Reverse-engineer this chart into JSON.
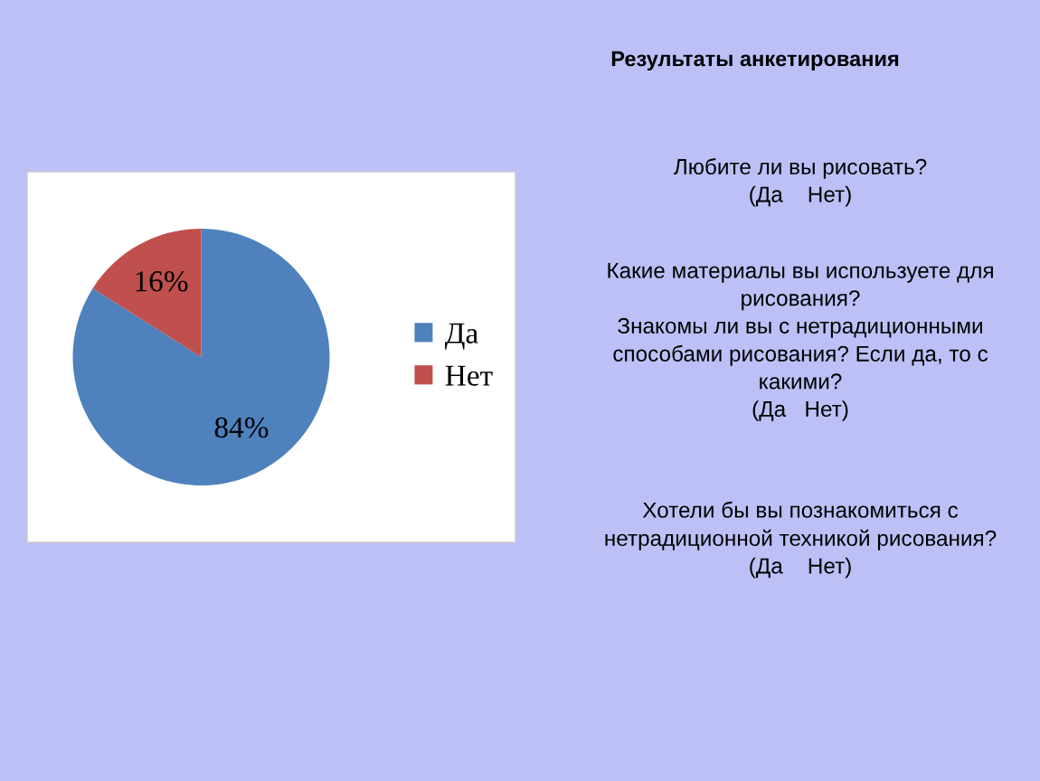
{
  "chart_data": {
    "type": "pie",
    "title": "Результаты анкетирования",
    "categories": [
      "Да",
      "Нет"
    ],
    "values": [
      84,
      16
    ],
    "colors": [
      "#4f81bd",
      "#c0504d"
    ],
    "value_labels": [
      "84%",
      "16%"
    ],
    "legend": "right",
    "annotations": [
      "Любите ли вы рисовать?\n(Да    Нет)",
      "Какие материалы вы используете для\nрисования?\nЗнакомы ли вы с нетрадиционными\nспособами рисования? Если да, то с\nкакими?\n(Да   Нет)",
      "Хотели бы вы познакомиться с\nнетрадиционной техникой рисования?\n(Да    Нет)"
    ]
  }
}
